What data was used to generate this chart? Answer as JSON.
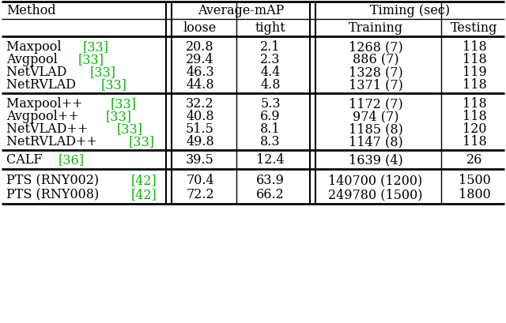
{
  "rows": [
    [
      "Maxpool",
      "[33]",
      "20.8",
      "2.1",
      "1268 (7)",
      "118"
    ],
    [
      "Avgpool",
      "[33]",
      "29.4",
      "2.3",
      "886 (7)",
      "118"
    ],
    [
      "NetVLAD",
      "[33]",
      "46.3",
      "4.4",
      "1328 (7)",
      "119"
    ],
    [
      "NetRVLAD",
      "[33]",
      "44.8",
      "4.8",
      "1371 (7)",
      "118"
    ],
    [
      "Maxpool++",
      "[33]",
      "32.2",
      "5.3",
      "1172 (7)",
      "118"
    ],
    [
      "Avgpool++",
      "[33]",
      "40.8",
      "6.9",
      "974 (7)",
      "118"
    ],
    [
      "NetVLAD++",
      "[33]",
      "51.5",
      "8.1",
      "1185 (8)",
      "120"
    ],
    [
      "NetRVLAD++",
      "[33]",
      "49.8",
      "8.3",
      "1147 (8)",
      "118"
    ],
    [
      "CALF",
      "[36]",
      "39.5",
      "12.4",
      "1639 (4)",
      "26"
    ],
    [
      "PTS (RNY002)",
      "[42]",
      "70.4",
      "63.9",
      "140700 (1200)",
      "1500"
    ],
    [
      "PTS (RNY008)",
      "[42]",
      "72.2",
      "66.2",
      "249780 (1500)",
      "1800"
    ]
  ],
  "green_color": "#00bb00",
  "black_color": "#000000",
  "bg_color": "#ffffff",
  "font_size": 11.5
}
